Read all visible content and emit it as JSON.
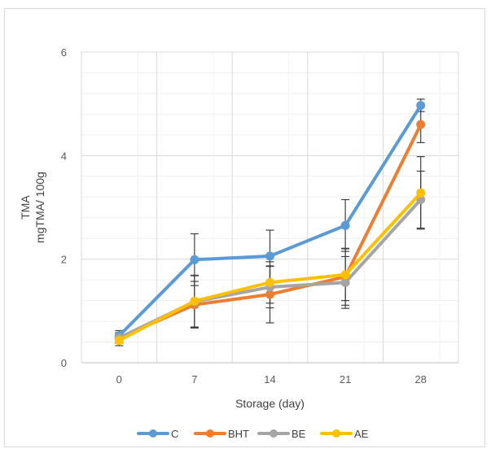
{
  "chart_data": {
    "type": "line",
    "title": "",
    "xlabel": "Storage (day)",
    "ylabel_lines": [
      "TMA",
      "mgTMA/ 100g"
    ],
    "categories": [
      "0",
      "7",
      "14",
      "21",
      "28"
    ],
    "ylim": [
      0,
      6
    ],
    "yticks": [
      "0",
      "2",
      "4",
      "6"
    ],
    "grid": true,
    "legend_position": "bottom",
    "series": [
      {
        "name": "C",
        "color": "#5b9bd5",
        "values": [
          0.52,
          1.99,
          2.06,
          2.65,
          4.97
        ],
        "error": [
          0.1,
          0.5,
          0.5,
          0.5,
          0.12
        ]
      },
      {
        "name": "BHT",
        "color": "#ed7d31",
        "values": [
          0.48,
          1.12,
          1.32,
          1.66,
          4.6
        ],
        "error": [
          0.1,
          0.45,
          0.55,
          0.55,
          0.35
        ]
      },
      {
        "name": "BE",
        "color": "#a5a5a5",
        "values": [
          0.48,
          1.18,
          1.46,
          1.55,
          3.15
        ],
        "error": [
          0.1,
          0.5,
          0.4,
          0.5,
          0.55
        ]
      },
      {
        "name": "AE",
        "color": "#ffc000",
        "values": [
          0.43,
          1.19,
          1.55,
          1.7,
          3.28
        ],
        "error": [
          0.1,
          0.5,
          0.4,
          0.5,
          0.7
        ]
      }
    ]
  }
}
